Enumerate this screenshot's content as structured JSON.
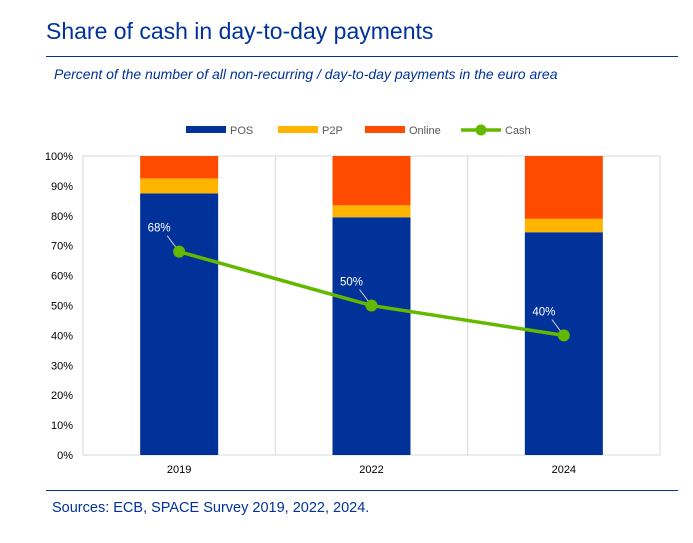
{
  "header": {
    "title": "Share of cash in day-to-day payments",
    "subtitle": "Percent of the number of all non-recurring / day-to-day payments in the euro area"
  },
  "footer": {
    "source": "Sources: ECB, SPACE Survey 2019, 2022, 2024."
  },
  "chart_data": {
    "type": "bar",
    "stacked": true,
    "categories": [
      "2019",
      "2022",
      "2024"
    ],
    "series": [
      {
        "name": "POS",
        "kind": "bar",
        "color": "#003299",
        "values": [
          87.5,
          79.5,
          74.5
        ]
      },
      {
        "name": "P2P",
        "kind": "bar",
        "color": "#FFB400",
        "values": [
          5.0,
          4.0,
          4.5
        ]
      },
      {
        "name": "Online",
        "kind": "bar",
        "color": "#FF4B00",
        "values": [
          7.5,
          16.5,
          21.0
        ]
      },
      {
        "name": "Cash",
        "kind": "line",
        "color": "#65B800",
        "values": [
          68,
          50,
          40
        ],
        "labels": [
          "68%",
          "50%",
          "40%"
        ]
      }
    ],
    "ylim": [
      0,
      100
    ],
    "yticks": [
      "0%",
      "10%",
      "20%",
      "30%",
      "40%",
      "50%",
      "60%",
      "70%",
      "80%",
      "90%",
      "100%"
    ],
    "grid": "vertical",
    "legend_position": "top"
  }
}
